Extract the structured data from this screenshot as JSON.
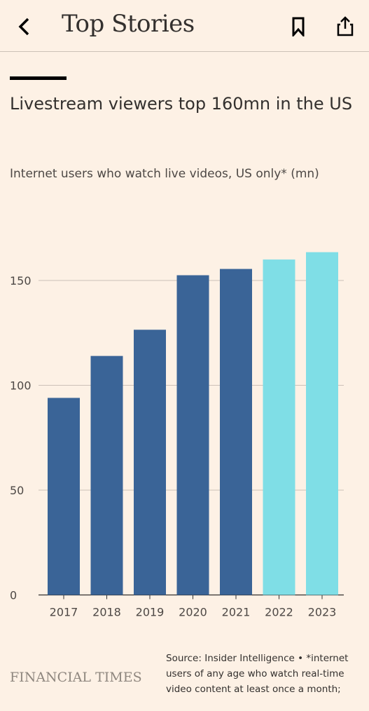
{
  "header": {
    "title": "Top Stories",
    "back_icon": "chevron-left-icon",
    "bookmark_icon": "bookmark-icon",
    "share_icon": "share-icon"
  },
  "chart_data": {
    "type": "bar",
    "title": "Livestream viewers top 160mn in the US",
    "subtitle": "Internet users who watch live videos, US only* (mn)",
    "categories": [
      "2017",
      "2018",
      "2019",
      "2020",
      "2021",
      "2022",
      "2023"
    ],
    "values": [
      94,
      114,
      126.5,
      152.5,
      155.5,
      160,
      163.5
    ],
    "bar_colors": [
      "#3a6497",
      "#3a6497",
      "#3a6497",
      "#3a6497",
      "#3a6497",
      "#7fdee6",
      "#7fdee6"
    ],
    "ylim": [
      0,
      170
    ],
    "yticks": [
      0,
      50,
      100,
      150
    ],
    "grid": true,
    "xlabel": "",
    "ylabel": ""
  },
  "footer": {
    "logo_text": "FINANCIAL TIMES",
    "source_note": "Source: Insider Intelligence • *internet users of any age who watch real-time video content at least once a month;"
  }
}
